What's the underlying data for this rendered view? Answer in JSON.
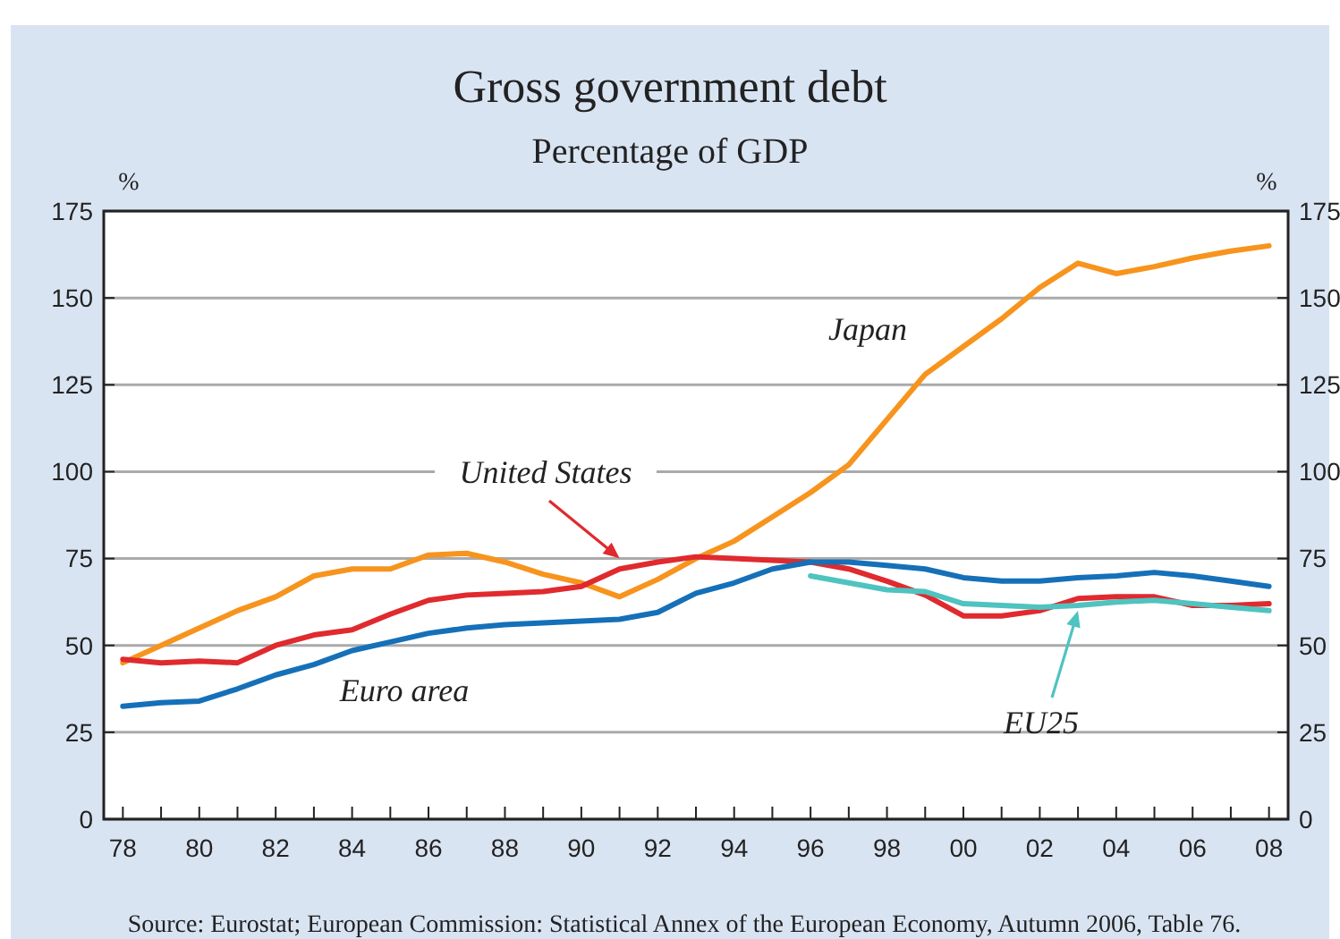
{
  "chart_data": {
    "type": "line",
    "title": "Gross government debt",
    "subtitle": "Percentage of GDP",
    "ylabel": "%",
    "y2label": "%",
    "x": [
      1978,
      1979,
      1980,
      1981,
      1982,
      1983,
      1984,
      1985,
      1986,
      1987,
      1988,
      1989,
      1990,
      1991,
      1992,
      1993,
      1994,
      1995,
      1996,
      1997,
      1998,
      1999,
      2000,
      2001,
      2002,
      2003,
      2004,
      2005,
      2006,
      2007,
      2008
    ],
    "xlim": [
      1977.5,
      2008.5
    ],
    "xticks": [
      {
        "value": 1978,
        "label": "78"
      },
      {
        "value": 1979,
        "label": null
      },
      {
        "value": 1980,
        "label": "80"
      },
      {
        "value": 1981,
        "label": null
      },
      {
        "value": 1982,
        "label": "82"
      },
      {
        "value": 1983,
        "label": null
      },
      {
        "value": 1984,
        "label": "84"
      },
      {
        "value": 1985,
        "label": null
      },
      {
        "value": 1986,
        "label": "86"
      },
      {
        "value": 1987,
        "label": null
      },
      {
        "value": 1988,
        "label": "88"
      },
      {
        "value": 1989,
        "label": null
      },
      {
        "value": 1990,
        "label": "90"
      },
      {
        "value": 1991,
        "label": null
      },
      {
        "value": 1992,
        "label": "92"
      },
      {
        "value": 1993,
        "label": null
      },
      {
        "value": 1994,
        "label": "94"
      },
      {
        "value": 1995,
        "label": null
      },
      {
        "value": 1996,
        "label": "96"
      },
      {
        "value": 1997,
        "label": null
      },
      {
        "value": 1998,
        "label": "98"
      },
      {
        "value": 1999,
        "label": null
      },
      {
        "value": 2000,
        "label": "00"
      },
      {
        "value": 2001,
        "label": null
      },
      {
        "value": 2002,
        "label": "02"
      },
      {
        "value": 2003,
        "label": null
      },
      {
        "value": 2004,
        "label": "04"
      },
      {
        "value": 2005,
        "label": null
      },
      {
        "value": 2006,
        "label": "06"
      },
      {
        "value": 2007,
        "label": null
      },
      {
        "value": 2008,
        "label": "08"
      }
    ],
    "ylim": [
      0,
      175
    ],
    "yticks": [
      0,
      25,
      50,
      75,
      100,
      125,
      150,
      175
    ],
    "y2lim": [
      0,
      175
    ],
    "y2ticks": [
      0,
      25,
      50,
      75,
      100,
      125,
      150,
      175
    ],
    "grid": "y",
    "marker": "none",
    "line_style": "solid",
    "series": [
      {
        "name": "Japan",
        "color": "#f7941d",
        "values": [
          45,
          50,
          55,
          60,
          64,
          70,
          72,
          72,
          76,
          76.5,
          74,
          70.5,
          68,
          64,
          69,
          75,
          80,
          87,
          94,
          102,
          115,
          128,
          136,
          144,
          153,
          160,
          157,
          159,
          161.5,
          163.5,
          165
        ]
      },
      {
        "color": "#e02a2e",
        "values": [
          46,
          45,
          45.5,
          45,
          50,
          53,
          54.5,
          59,
          63,
          64.5,
          65,
          65.5,
          67,
          72,
          74,
          75.5,
          75,
          74.5,
          74,
          72,
          68.5,
          64.5,
          58.5,
          58.5,
          60,
          63.5,
          64,
          64,
          61.5,
          61.5,
          62
        ]
      },
      {
        "name": "Euro area",
        "color": "#1570b8",
        "values": [
          32.5,
          33.5,
          34,
          37.5,
          41.5,
          44.5,
          48.5,
          51,
          53.5,
          55,
          56,
          56.5,
          57,
          57.5,
          59.5,
          65,
          68,
          72,
          74,
          74,
          73,
          72,
          69.5,
          68.5,
          68.5,
          69.5,
          70,
          71,
          70,
          68.5,
          67
        ]
      },
      {
        "color": "#4fc3c0",
        "values": [
          null,
          null,
          null,
          null,
          null,
          null,
          null,
          null,
          null,
          null,
          null,
          null,
          null,
          null,
          null,
          null,
          null,
          null,
          70,
          68,
          66,
          65.5,
          62,
          61.5,
          61,
          61.5,
          62.5,
          63,
          62,
          61,
          60
        ]
      }
    ],
    "annotations": [
      "Source: Eurostat; European Commission: Statistical Annex of the European Economy, Autumn 2006, Table 76.",
      {
        "text": "United States",
        "x": 1991,
        "y": 72
      },
      "EU25"
    ]
  }
}
